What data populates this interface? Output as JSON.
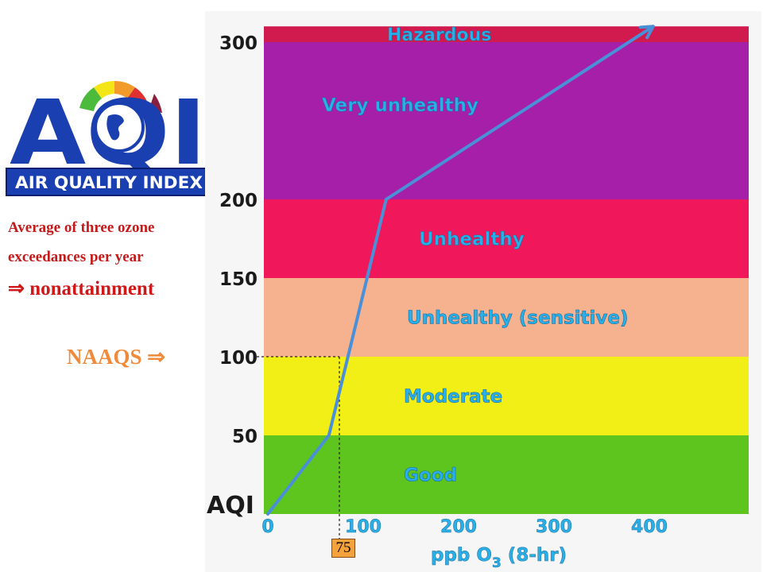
{
  "logo": {
    "letters": "AQI",
    "band": "AIR QUALITY INDEX"
  },
  "notes": {
    "line1": "Average of three ozone",
    "line2": "exceedances per year",
    "line3": "⇒ nonattainment",
    "naaqs": "NAAQS  ⇒"
  },
  "colors": {
    "accent": "#4a90d9",
    "note": "#c41a1a",
    "naaqs": "#f08a3a"
  },
  "chart_data": {
    "type": "line",
    "y_axis_title": "AQI",
    "x_axis_title_parts": [
      "ppb O",
      "3",
      " (8-hr)"
    ],
    "xlim": [
      0,
      500
    ],
    "ylim": [
      0,
      310
    ],
    "x_ticks": [
      0,
      100,
      200,
      300,
      400
    ],
    "y_ticks": [
      50,
      100,
      150,
      200,
      300
    ],
    "zones": [
      {
        "name": "Good",
        "from": 0,
        "to": 50,
        "color": "#5ec41e"
      },
      {
        "name": "Moderate",
        "from": 50,
        "to": 100,
        "color": "#f2ef17"
      },
      {
        "name": "Unhealthy (sensitive)",
        "from": 100,
        "to": 150,
        "color": "#f6b28f"
      },
      {
        "name": "Unhealthy",
        "from": 150,
        "to": 200,
        "color": "#f0185a"
      },
      {
        "name": "Very unhealthy",
        "from": 200,
        "to": 300,
        "color": "#a51fa8"
      },
      {
        "name": "Hazardous",
        "from": 300,
        "to": 310,
        "color": "#d11a4e"
      }
    ],
    "series": [
      {
        "x": [
          0,
          64,
          84,
          124,
          404
        ],
        "y": [
          0,
          50,
          100,
          200,
          310
        ]
      }
    ],
    "marker": {
      "x": 75,
      "y": 100,
      "label": "75"
    }
  }
}
